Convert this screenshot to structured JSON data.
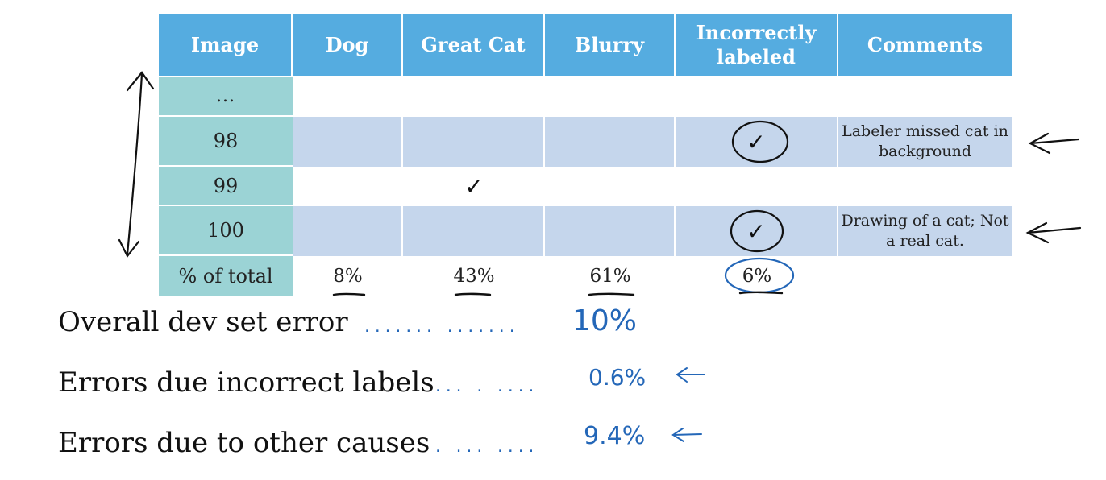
{
  "table": {
    "headers": [
      "Image",
      "Dog",
      "Great Cat",
      "Blurry",
      "Incorrectly labeled",
      "Comments"
    ],
    "rows": [
      {
        "image": "...",
        "dog": "",
        "great_cat": "",
        "blurry": "",
        "incorrect": "",
        "comment": ""
      },
      {
        "image": "98",
        "dog": "",
        "great_cat": "",
        "blurry": "",
        "incorrect": "✓",
        "comment": "Labeler missed cat in background"
      },
      {
        "image": "99",
        "dog": "",
        "great_cat": "✓",
        "blurry": "",
        "incorrect": "",
        "comment": ""
      },
      {
        "image": "100",
        "dog": "",
        "great_cat": "",
        "blurry": "",
        "incorrect": "✓",
        "comment": "Drawing of a cat; Not a real cat."
      }
    ],
    "total": {
      "label": "% of total",
      "dog": "8%",
      "great_cat": "43%",
      "blurry": "61%",
      "incorrect": "6%"
    }
  },
  "summary": [
    {
      "label": "Overall dev set error",
      "value": "10%"
    },
    {
      "label": "Errors due incorrect labels",
      "value": "0.6%"
    },
    {
      "label": "Errors due to other causes",
      "value": "9.4%"
    }
  ],
  "colors": {
    "header": "#55ace0",
    "label_col": "#9bd3d5",
    "row_alt": "#c5d6ec",
    "ink": "#2467b8"
  }
}
